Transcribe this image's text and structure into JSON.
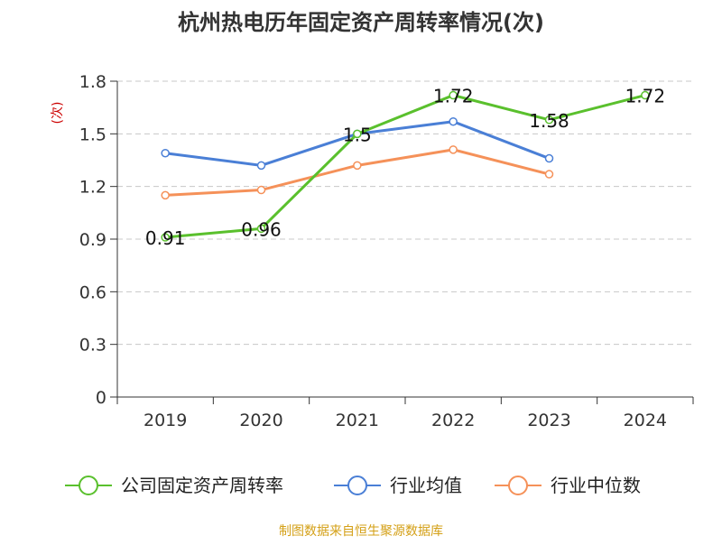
{
  "chart_data": {
    "type": "line",
    "title": "杭州热电历年固定资产周转率情况(次)",
    "ylabel": "(次)",
    "xlabel": "",
    "categories": [
      "2019",
      "2020",
      "2021",
      "2022",
      "2023",
      "2024"
    ],
    "ylim": [
      0,
      1.8
    ],
    "yticks": [
      "0",
      "0.3",
      "0.6",
      "0.9",
      "1.2",
      "1.5",
      "1.8"
    ],
    "grid": true,
    "legend_position": "bottom",
    "series": [
      {
        "name": "公司固定资产周转率",
        "color": "#5ac02d",
        "values": [
          0.91,
          0.96,
          1.5,
          1.72,
          1.58,
          1.72
        ],
        "labels": [
          "0.91",
          "0.96",
          "1.5",
          "1.72",
          "1.58",
          "1.72"
        ]
      },
      {
        "name": "行业均值",
        "color": "#4a7fd6",
        "values": [
          1.39,
          1.32,
          1.5,
          1.57,
          1.36,
          null
        ],
        "labels": []
      },
      {
        "name": "行业中位数",
        "color": "#f59159",
        "values": [
          1.15,
          1.18,
          1.32,
          1.41,
          1.27,
          null
        ],
        "labels": []
      }
    ],
    "source": "制图数据来自恒生聚源数据库"
  }
}
